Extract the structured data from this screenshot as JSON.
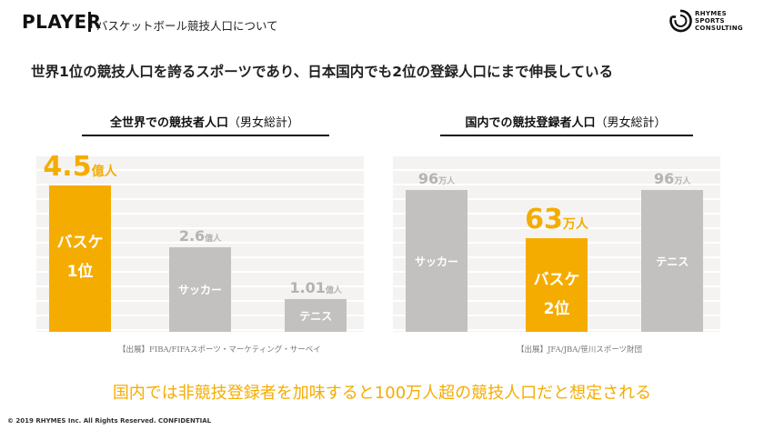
{
  "header": {
    "title": "PLAYER",
    "subtitle": "バスケットボール競技人口について",
    "logo_lines": [
      "RHYMES",
      "SPORTS",
      "CONSULTING"
    ]
  },
  "headline": "世界1位の競技人口を誇るスポーツであり、日本国内でも2位の登録人口にまで伸長している",
  "colors": {
    "highlight": "#f5ac00",
    "bar": "#c3c1bf",
    "grid_bg": "#f4f3f2"
  },
  "chart_data": [
    {
      "type": "bar",
      "title": "全世界での競技者人口",
      "title_note": "（男女総計）",
      "categories": [
        "バスケ",
        "サッカー",
        "テニス"
      ],
      "values": [
        4.5,
        2.6,
        1.01
      ],
      "value_labels": [
        "4.5",
        "2.6",
        "1.01"
      ],
      "unit": "億人",
      "rank_labels": [
        "1位",
        "",
        ""
      ],
      "highlight_index": 0,
      "ylim": [
        0,
        5
      ],
      "source": "【出展】FIBA/FIFAスポーツ・マーケティング・サーベイ"
    },
    {
      "type": "bar",
      "title": "国内での競技登録者人口",
      "title_note": "（男女総計）",
      "categories": [
        "サッカー",
        "バスケ",
        "テニス"
      ],
      "values": [
        96,
        63,
        96
      ],
      "value_labels": [
        "96",
        "63",
        "96"
      ],
      "unit": "万人",
      "rank_labels": [
        "",
        "2位",
        ""
      ],
      "highlight_index": 1,
      "ylim": [
        0,
        110
      ],
      "source": "【出展】JFA/JBA/笹川スポーツ財団"
    }
  ],
  "conclusion": "国内では非競技登録者を加味すると100万人超の競技人口だと想定される",
  "footer": "© 2019 RHYMES Inc. All Rights Reserved. CONFIDENTIAL"
}
